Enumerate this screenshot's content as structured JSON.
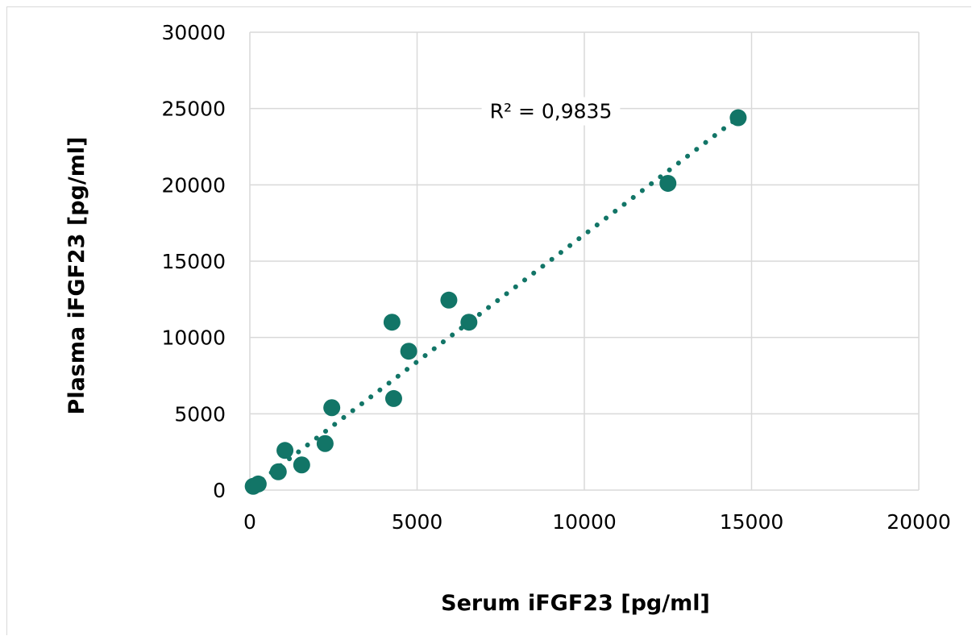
{
  "chart_data": {
    "type": "scatter",
    "xlabel": "Serum iFGF23 [pg/ml]",
    "ylabel": "Plasma iFGF23 [pg/ml]",
    "xlim": [
      0,
      20000
    ],
    "ylim": [
      0,
      30000
    ],
    "xticks": [
      0,
      5000,
      10000,
      15000,
      20000
    ],
    "yticks": [
      0,
      5000,
      10000,
      15000,
      20000,
      25000,
      30000
    ],
    "x_tick_labels": [
      "0",
      "5000",
      "10000",
      "15000",
      "20000"
    ],
    "y_tick_labels": [
      "0",
      "5000",
      "10000",
      "15000",
      "20000",
      "25000",
      "30000"
    ],
    "grid": true,
    "series": [
      {
        "points": [
          {
            "x": 100,
            "y": 250
          },
          {
            "x": 250,
            "y": 400
          },
          {
            "x": 850,
            "y": 1200
          },
          {
            "x": 1050,
            "y": 2600
          },
          {
            "x": 1550,
            "y": 1650
          },
          {
            "x": 2250,
            "y": 3050
          },
          {
            "x": 2450,
            "y": 5400
          },
          {
            "x": 4250,
            "y": 11000
          },
          {
            "x": 4300,
            "y": 6000
          },
          {
            "x": 4750,
            "y": 9100
          },
          {
            "x": 5950,
            "y": 12450
          },
          {
            "x": 6550,
            "y": 11000
          },
          {
            "x": 12500,
            "y": 20100
          },
          {
            "x": 14600,
            "y": 24400
          }
        ]
      }
    ],
    "trendline": {
      "type": "linear",
      "style": "dotted",
      "from": {
        "x": 100,
        "y": 250
      },
      "to": {
        "x": 14600,
        "y": 24400
      }
    },
    "annotation": {
      "text": "R² = 0,9835",
      "x": 9000,
      "y": 24850
    },
    "colors": {
      "points": "#127567",
      "trendline": "#127567",
      "grid": "#d9d9d9"
    }
  }
}
